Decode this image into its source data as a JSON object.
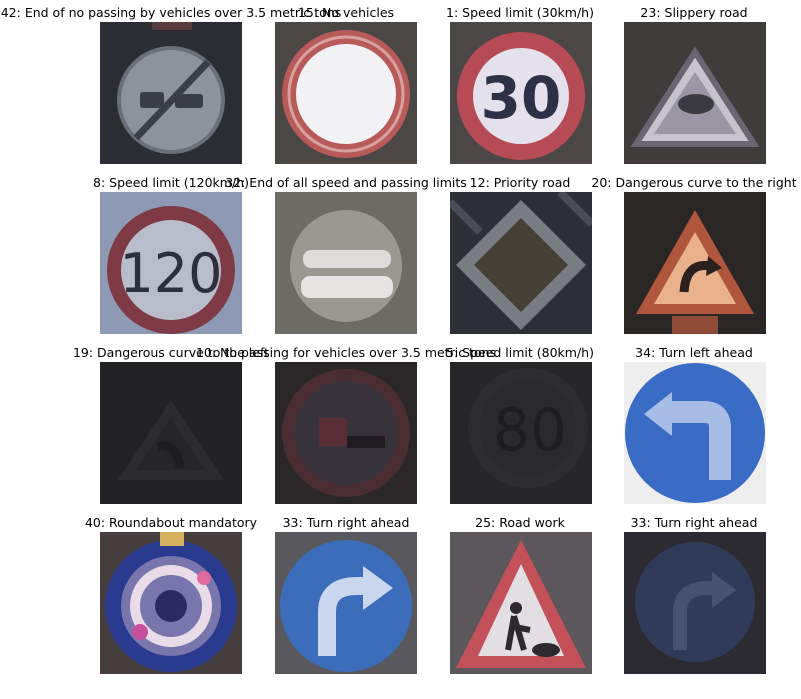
{
  "grid": [
    {
      "label": "42: End of no passing by vehicles over 3.5 metric tons",
      "sign": "end-no-passing-icon"
    },
    {
      "label": "15: No vehicles",
      "sign": "no-vehicles-icon"
    },
    {
      "label": "1: Speed limit (30km/h)",
      "sign": "speed-limit-sign-icon",
      "number": "30"
    },
    {
      "label": "23: Slippery road",
      "sign": "slippery-road-icon"
    },
    {
      "label": "8: Speed limit (120km/h)",
      "sign": "speed-limit-sign-icon",
      "number": "120"
    },
    {
      "label": "32: End of all speed and passing limits",
      "sign": "end-all-limits-icon"
    },
    {
      "label": "12: Priority road",
      "sign": "priority-road-icon"
    },
    {
      "label": "20: Dangerous curve to the right",
      "sign": "curve-right-icon"
    },
    {
      "label": "19: Dangerous curve to the left",
      "sign": "curve-left-icon"
    },
    {
      "label": "10: No passing for vehicles over 3.5 metric tons",
      "sign": "no-passing-trucks-icon"
    },
    {
      "label": "5: Speed limit (80km/h)",
      "sign": "speed-limit-sign-icon",
      "number": "80"
    },
    {
      "label": "34: Turn left ahead",
      "sign": "turn-left-ahead-icon"
    },
    {
      "label": "40: Roundabout mandatory",
      "sign": "roundabout-icon"
    },
    {
      "label": "33: Turn right ahead",
      "sign": "turn-right-ahead-icon"
    },
    {
      "label": "25: Road work",
      "sign": "road-work-icon"
    },
    {
      "label": "33: Turn right ahead",
      "sign": "turn-right-ahead-icon"
    }
  ]
}
